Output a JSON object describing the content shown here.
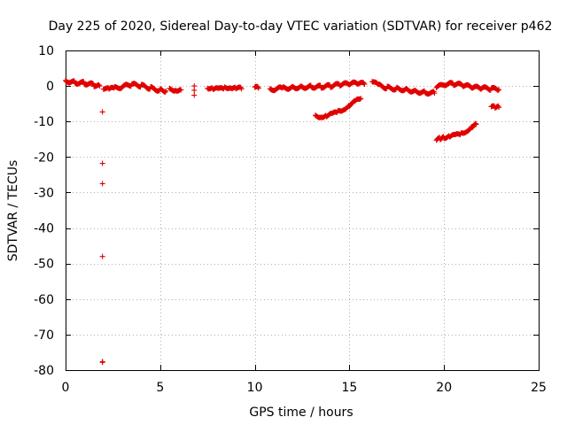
{
  "chart_data": {
    "type": "scatter",
    "title": "Day 225 of 2020, Sidereal Day-to-day VTEC variation (SDTVAR) for receiver p462",
    "xlabel": "GPS time / hours",
    "ylabel": "SDTVAR / TECUs",
    "xlim": [
      0,
      25
    ],
    "ylim": [
      -80,
      10
    ],
    "xticks": [
      0,
      5,
      10,
      15,
      20,
      25
    ],
    "yticks": [
      10,
      0,
      -10,
      -20,
      -30,
      -40,
      -50,
      -60,
      -70,
      -80
    ],
    "grid": true,
    "marker": "+",
    "color": "#e00000",
    "segments": [
      {
        "name": "main-a",
        "x": [
          0.0,
          0.5,
          1.0,
          1.5,
          1.8
        ],
        "y": [
          1.5,
          1.0,
          0.8,
          0.3,
          0.0
        ]
      },
      {
        "name": "main-b",
        "x": [
          2.0,
          2.3,
          2.6,
          3.0,
          3.5,
          4.0,
          4.5,
          5.0,
          5.3
        ],
        "y": [
          -0.5,
          -1.0,
          -0.6,
          -0.2,
          0.4,
          0.1,
          -0.6,
          -1.2,
          -1.4
        ]
      },
      {
        "name": "main-c",
        "x": [
          5.5,
          5.8,
          6.1
        ],
        "y": [
          -1.0,
          -1.0,
          -1.1
        ]
      },
      {
        "name": "main-d",
        "x": [
          7.5,
          7.8,
          8.1,
          8.4,
          8.7,
          9.0,
          9.3
        ],
        "y": [
          -0.3,
          -0.8,
          -1.0,
          -0.5,
          -0.2,
          -0.6,
          -0.8
        ]
      },
      {
        "name": "main-e",
        "x": [
          10.0,
          10.2
        ],
        "y": [
          -0.5,
          -0.6
        ]
      },
      {
        "name": "main-f",
        "x": [
          10.8,
          11.5,
          12.0,
          12.5,
          13.0,
          13.5,
          14.0,
          14.5,
          15.0,
          15.5,
          15.8
        ],
        "y": [
          -1.0,
          -0.6,
          -0.4,
          -0.3,
          -0.2,
          -0.2,
          0.0,
          0.4,
          0.6,
          0.8,
          0.5
        ]
      },
      {
        "name": "main-g",
        "x": [
          16.2,
          16.5,
          17.0,
          17.5,
          18.0,
          18.5,
          19.0,
          19.5
        ],
        "y": [
          1.5,
          0.2,
          -0.5,
          -0.8,
          -1.0,
          -1.5,
          -1.8,
          -2.0
        ]
      },
      {
        "name": "main-h",
        "x": [
          19.6,
          20.0,
          20.5,
          21.0,
          21.5,
          22.0,
          22.5,
          22.9
        ],
        "y": [
          -0.5,
          0.5,
          0.6,
          0.2,
          -0.4,
          -0.6,
          -0.8,
          -1.0
        ]
      },
      {
        "name": "dip-1",
        "x": [
          13.2,
          13.5,
          13.8,
          14.1,
          14.4,
          14.7,
          15.0,
          15.3,
          15.6
        ],
        "y": [
          -8.5,
          -8.5,
          -8.4,
          -8.0,
          -7.2,
          -6.4,
          -5.5,
          -4.5,
          -3.5
        ]
      },
      {
        "name": "dip-2",
        "x": [
          19.6,
          19.8,
          20.0,
          20.3,
          20.6,
          20.9,
          21.2,
          21.5,
          21.7
        ],
        "y": [
          -15.3,
          -14.8,
          -14.4,
          -14.2,
          -14.0,
          -13.4,
          -12.5,
          -11.5,
          -10.8
        ]
      },
      {
        "name": "dip-3",
        "x": [
          22.5,
          22.7,
          22.9
        ],
        "y": [
          -6.0,
          -6.0,
          -6.0
        ]
      },
      {
        "name": "gap-1",
        "x": [
          6.8,
          6.8,
          6.8
        ],
        "y": [
          0.0,
          -1.2,
          -2.6
        ]
      },
      {
        "name": "outliers",
        "x": [
          1.95,
          1.95,
          1.95,
          1.95,
          1.95,
          1.95
        ],
        "y": [
          -7.3,
          -21.8,
          -27.5,
          -48.0,
          -77.6,
          -77.8
        ]
      }
    ]
  }
}
